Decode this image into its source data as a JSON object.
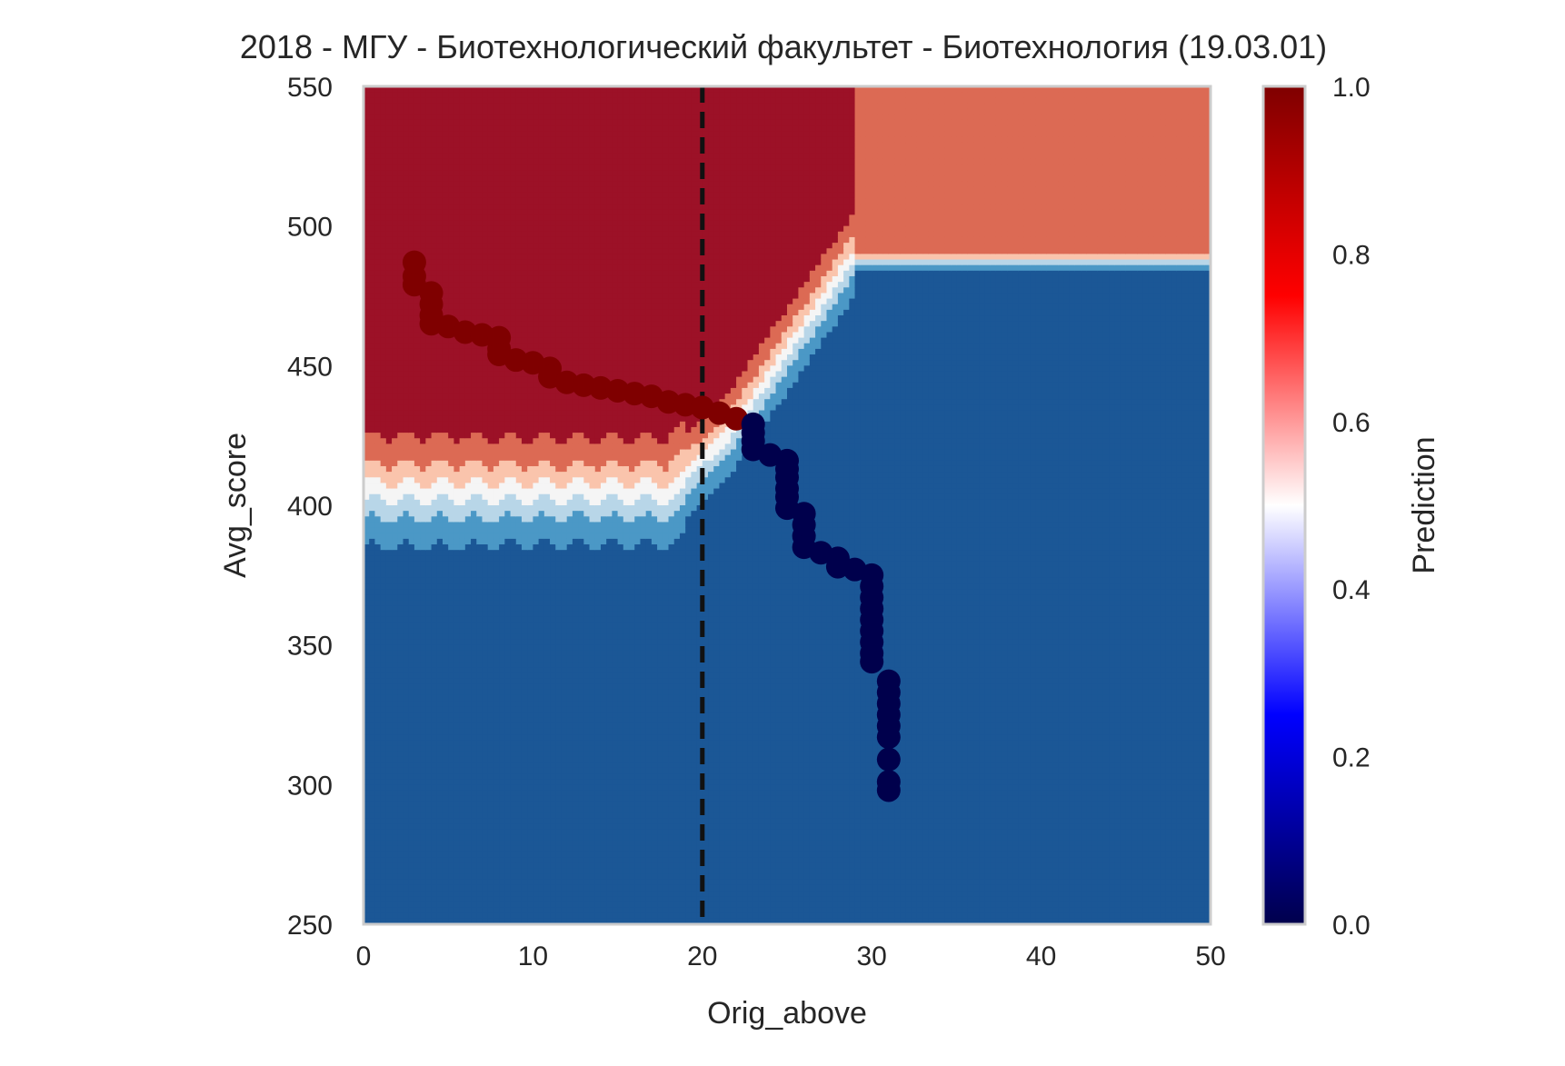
{
  "chart_data": {
    "type": "heatmap",
    "title": "2018 - МГУ - Биотехнологический факультет - Биотехнология (19.03.01)",
    "xlabel": "Orig_above",
    "ylabel": "Avg_score",
    "xlim": [
      0,
      50
    ],
    "ylim": [
      250,
      550
    ],
    "x_ticks": [
      "0",
      "10",
      "20",
      "30",
      "40",
      "50"
    ],
    "y_ticks": [
      "250",
      "300",
      "350",
      "400",
      "450",
      "500",
      "550"
    ],
    "colorbar": {
      "label": "Prediction",
      "range": [
        0.0,
        1.0
      ],
      "ticks": [
        "0.0",
        "0.2",
        "0.4",
        "0.6",
        "0.8",
        "1.0"
      ],
      "colormap": "seismic"
    },
    "reference_line": {
      "x": 20,
      "style": "dashed",
      "color": "#111111"
    },
    "contour_levels": [
      {
        "level": 0.05,
        "color": "#1b5796"
      },
      {
        "level": 0.2,
        "color": "#4b98c6"
      },
      {
        "level": 0.35,
        "color": "#b8d6e8"
      },
      {
        "level": 0.5,
        "color": "#f5f5f5"
      },
      {
        "level": 0.65,
        "color": "#fac4ac"
      },
      {
        "level": 0.8,
        "color": "#dc6a54"
      },
      {
        "level": 0.95,
        "color": "#9c1127"
      }
    ],
    "admitted_points": [
      {
        "x": 3,
        "y": 487
      },
      {
        "x": 3,
        "y": 482
      },
      {
        "x": 3,
        "y": 479
      },
      {
        "x": 4,
        "y": 476
      },
      {
        "x": 4,
        "y": 472
      },
      {
        "x": 4,
        "y": 468
      },
      {
        "x": 4,
        "y": 465
      },
      {
        "x": 5,
        "y": 464
      },
      {
        "x": 6,
        "y": 462
      },
      {
        "x": 7,
        "y": 461
      },
      {
        "x": 8,
        "y": 460
      },
      {
        "x": 8,
        "y": 456
      },
      {
        "x": 8,
        "y": 454
      },
      {
        "x": 9,
        "y": 452
      },
      {
        "x": 10,
        "y": 451
      },
      {
        "x": 11,
        "y": 449
      },
      {
        "x": 11,
        "y": 446
      },
      {
        "x": 12,
        "y": 444
      },
      {
        "x": 13,
        "y": 443
      },
      {
        "x": 14,
        "y": 442
      },
      {
        "x": 15,
        "y": 441
      },
      {
        "x": 16,
        "y": 440
      },
      {
        "x": 17,
        "y": 439
      },
      {
        "x": 18,
        "y": 437
      },
      {
        "x": 19,
        "y": 436
      },
      {
        "x": 20,
        "y": 435
      },
      {
        "x": 21,
        "y": 433
      },
      {
        "x": 22,
        "y": 431
      }
    ],
    "rejected_points": [
      {
        "x": 23,
        "y": 429
      },
      {
        "x": 23,
        "y": 426
      },
      {
        "x": 23,
        "y": 423
      },
      {
        "x": 23,
        "y": 420
      },
      {
        "x": 24,
        "y": 418
      },
      {
        "x": 25,
        "y": 416
      },
      {
        "x": 25,
        "y": 413
      },
      {
        "x": 25,
        "y": 410
      },
      {
        "x": 25,
        "y": 406
      },
      {
        "x": 25,
        "y": 403
      },
      {
        "x": 25,
        "y": 399
      },
      {
        "x": 26,
        "y": 397
      },
      {
        "x": 26,
        "y": 393
      },
      {
        "x": 26,
        "y": 389
      },
      {
        "x": 26,
        "y": 385
      },
      {
        "x": 27,
        "y": 383
      },
      {
        "x": 28,
        "y": 381
      },
      {
        "x": 28,
        "y": 378
      },
      {
        "x": 29,
        "y": 377
      },
      {
        "x": 30,
        "y": 375
      },
      {
        "x": 30,
        "y": 371
      },
      {
        "x": 30,
        "y": 367
      },
      {
        "x": 30,
        "y": 363
      },
      {
        "x": 30,
        "y": 359
      },
      {
        "x": 30,
        "y": 355
      },
      {
        "x": 30,
        "y": 351
      },
      {
        "x": 30,
        "y": 347
      },
      {
        "x": 30,
        "y": 344
      },
      {
        "x": 31,
        "y": 337
      },
      {
        "x": 31,
        "y": 333
      },
      {
        "x": 31,
        "y": 329
      },
      {
        "x": 31,
        "y": 325
      },
      {
        "x": 31,
        "y": 321
      },
      {
        "x": 31,
        "y": 317
      },
      {
        "x": 31,
        "y": 309
      },
      {
        "x": 31,
        "y": 301
      },
      {
        "x": 31,
        "y": 298
      }
    ],
    "admitted_color": "#7f0000",
    "rejected_color": "#00004c"
  }
}
